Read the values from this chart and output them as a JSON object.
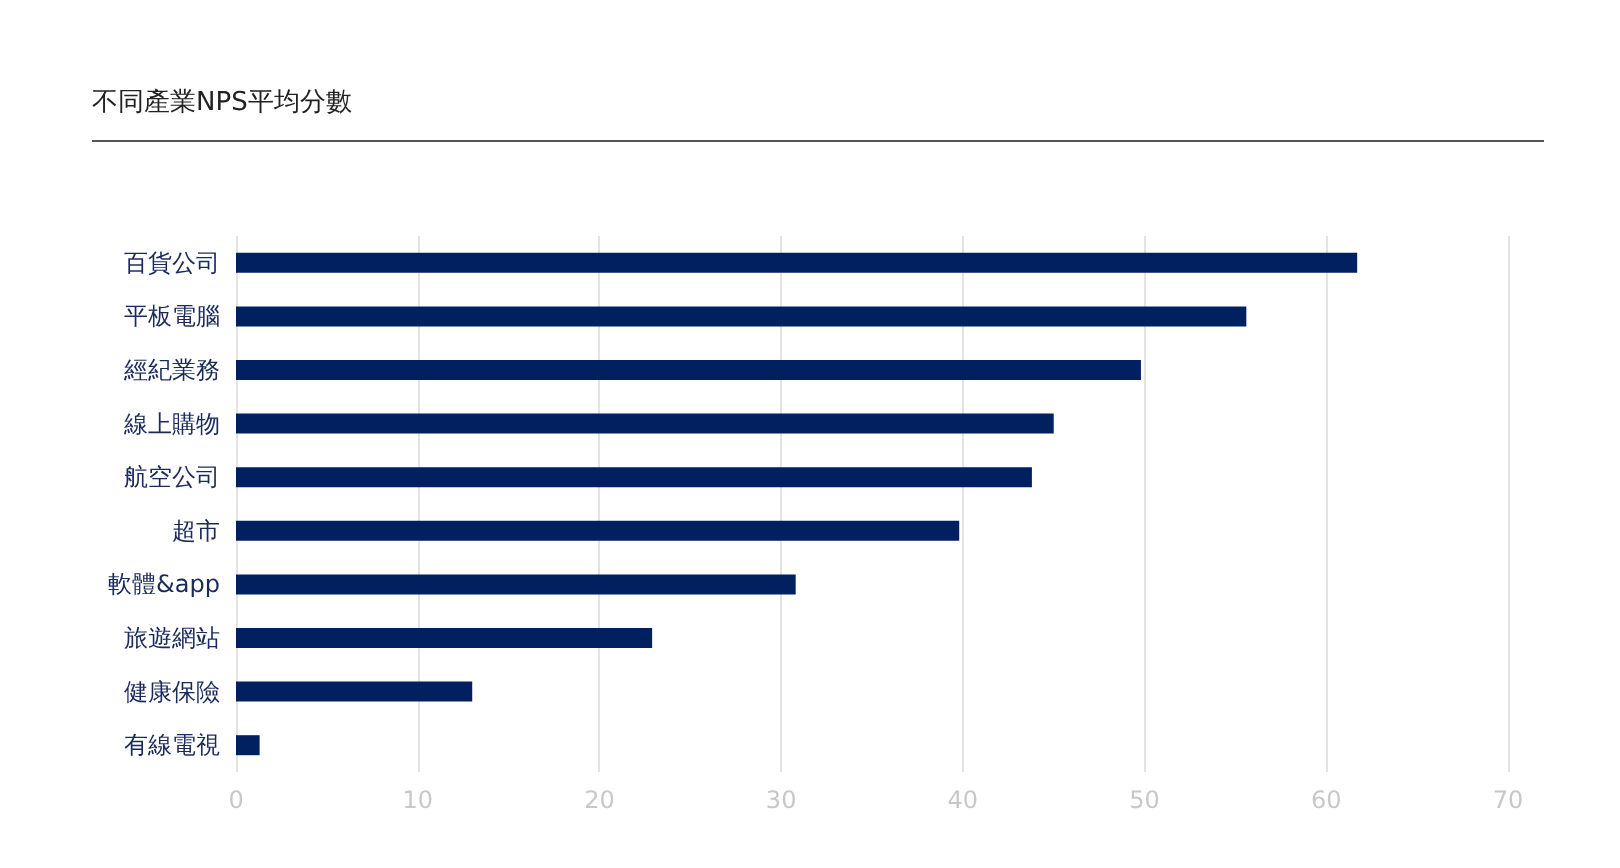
{
  "chart_data": {
    "type": "bar",
    "orientation": "horizontal",
    "title": "不同產業NPS平均分數",
    "categories": [
      "百貨公司",
      "平板電腦",
      "經紀業務",
      "線上購物",
      "航空公司",
      "超市",
      "軟體&app",
      "旅遊網站",
      "健康保險",
      "有線電視"
    ],
    "values": [
      61.7,
      55.6,
      49.8,
      45.0,
      43.8,
      39.8,
      30.8,
      22.9,
      13.0,
      1.3
    ],
    "color": "#002060",
    "xlim": [
      0,
      70
    ],
    "xticks": [
      0,
      10,
      20,
      30,
      40,
      50,
      60,
      70
    ],
    "grid": "x"
  }
}
